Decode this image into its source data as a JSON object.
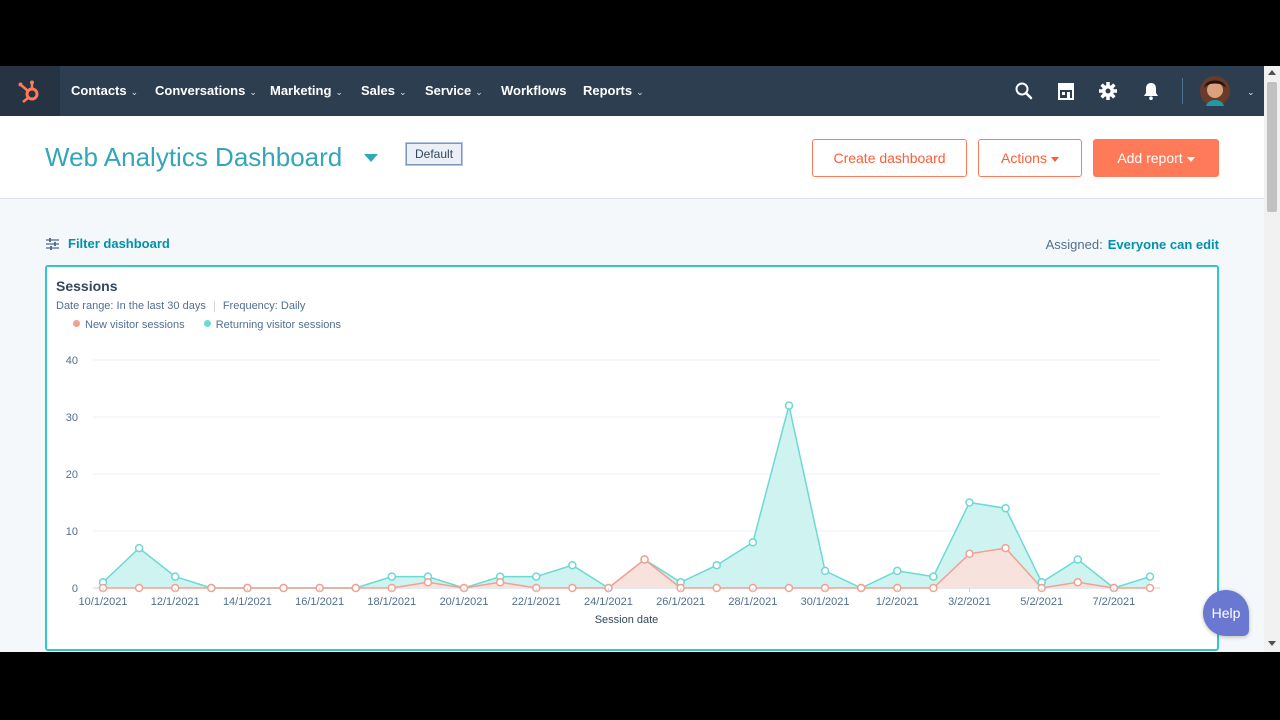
{
  "nav": {
    "items": [
      {
        "label": "Contacts",
        "has_menu": true
      },
      {
        "label": "Conversations",
        "has_menu": true
      },
      {
        "label": "Marketing",
        "has_menu": true
      },
      {
        "label": "Sales",
        "has_menu": true
      },
      {
        "label": "Service",
        "has_menu": true
      },
      {
        "label": "Workflows",
        "has_menu": false
      },
      {
        "label": "Reports",
        "has_menu": true
      }
    ],
    "icons": [
      "search-icon",
      "marketplace-icon",
      "settings-icon",
      "notifications-icon"
    ],
    "colors": {
      "bar": "#2d3e50",
      "logo": "#ff7a59"
    }
  },
  "header": {
    "title": "Web Analytics Dashboard",
    "badge": "Default",
    "create_label": "Create dashboard",
    "actions_label": "Actions",
    "add_report_label": "Add report"
  },
  "filter": {
    "label": "Filter dashboard",
    "assigned_label": "Assigned:",
    "assigned_value": "Everyone can edit"
  },
  "card": {
    "title": "Sessions",
    "date_range": "Date range:  In the last 30 days",
    "frequency": "Frequency:  Daily"
  },
  "help_label": "Help",
  "chart_data": {
    "type": "area",
    "title": "Sessions",
    "xlabel": "Session date",
    "ylabel": "",
    "ylim": [
      0,
      40
    ],
    "yticks": [
      0,
      10,
      20,
      30,
      40
    ],
    "grid": true,
    "legend_position": "top-left",
    "x": [
      "10/1/2021",
      "11/1/2021",
      "12/1/2021",
      "13/1/2021",
      "14/1/2021",
      "15/1/2021",
      "16/1/2021",
      "17/1/2021",
      "18/1/2021",
      "19/1/2021",
      "20/1/2021",
      "21/1/2021",
      "22/1/2021",
      "23/1/2021",
      "24/1/2021",
      "25/1/2021",
      "26/1/2021",
      "27/1/2021",
      "28/1/2021",
      "29/1/2021",
      "30/1/2021",
      "31/1/2021",
      "1/2/2021",
      "2/2/2021",
      "3/2/2021",
      "4/2/2021",
      "5/2/2021",
      "6/2/2021",
      "7/2/2021",
      "8/2/2021"
    ],
    "xtick_labels": [
      "10/1/2021",
      "12/1/2021",
      "14/1/2021",
      "16/1/2021",
      "18/1/2021",
      "20/1/2021",
      "22/1/2021",
      "24/1/2021",
      "26/1/2021",
      "28/1/2021",
      "30/1/2021",
      "1/2/2021",
      "3/2/2021",
      "5/2/2021",
      "7/2/2021"
    ],
    "series": [
      {
        "name": "New visitor sessions",
        "color": "#f2a190",
        "fill": "#fde0da",
        "values": [
          0,
          0,
          0,
          0,
          0,
          0,
          0,
          0,
          0,
          1,
          0,
          1,
          0,
          0,
          0,
          5,
          0,
          0,
          0,
          0,
          0,
          0,
          0,
          0,
          6,
          7,
          0,
          1,
          0,
          0
        ]
      },
      {
        "name": "Returning visitor sessions",
        "color": "#6cd9d2",
        "fill": "#c9f2ef",
        "values": [
          1,
          7,
          2,
          0,
          0,
          0,
          0,
          0,
          2,
          2,
          0,
          2,
          2,
          4,
          0,
          5,
          1,
          4,
          8,
          32,
          3,
          0,
          3,
          2,
          15,
          14,
          1,
          5,
          0,
          2
        ]
      }
    ]
  }
}
